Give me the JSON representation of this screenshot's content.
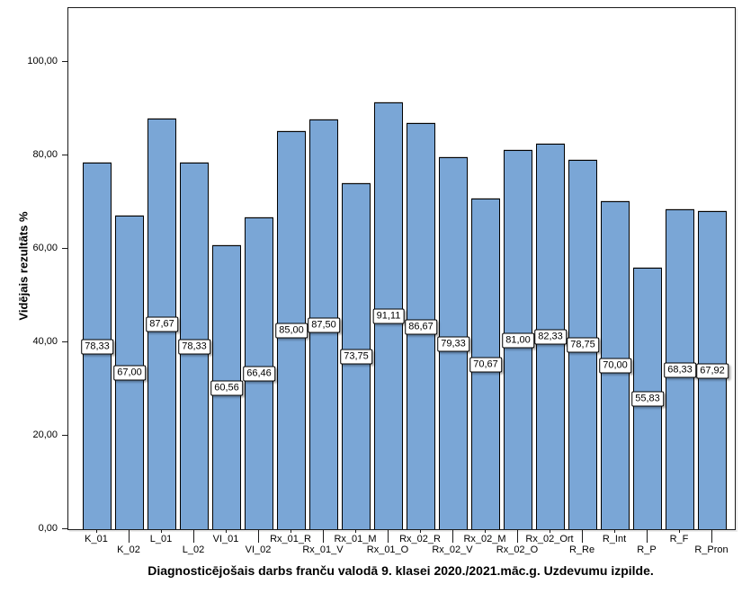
{
  "chart_data": {
    "type": "bar",
    "title": "Diagnosticējošais darbs franču valodā 9. klasei 2020./2021.māc.g. Uzdevumu izpilde.",
    "ylabel": "Vidējais rezultāts %",
    "xlabel": "",
    "categories": [
      "K_01",
      "K_02",
      "L_01",
      "L_02",
      "VI_01",
      "VI_02",
      "Rx_01_R",
      "Rx_01_V",
      "Rx_01_M",
      "Rx_01_O",
      "Rx_02_R",
      "Rx_02_V",
      "Rx_02_M",
      "Rx_02_O",
      "Rx_02_Ort",
      "R_Re",
      "R_Int",
      "R_P",
      "R_F",
      "R_Pron"
    ],
    "values": [
      78.33,
      67.0,
      87.67,
      78.33,
      60.56,
      66.46,
      85.0,
      87.5,
      73.75,
      91.11,
      86.67,
      79.33,
      70.67,
      81.0,
      82.33,
      78.75,
      70.0,
      55.83,
      68.33,
      67.92
    ],
    "value_labels": [
      "78,33",
      "67,00",
      "87,67",
      "78,33",
      "60,56",
      "66,46",
      "85,00",
      "87,50",
      "73,75",
      "91,11",
      "86,67",
      "79,33",
      "70,67",
      "81,00",
      "82,33",
      "78,75",
      "70,00",
      "55,83",
      "68,33",
      "67,92"
    ],
    "yticks": [
      0,
      20,
      40,
      60,
      80,
      100
    ],
    "ytick_labels": [
      "0,00",
      "20,00",
      "40,00",
      "60,00",
      "80,00",
      "100,00"
    ],
    "ylim": [
      0,
      111.5
    ],
    "grid": false,
    "legend": null,
    "bar_color": "#7AA6D6",
    "bar_border_color": "#000000",
    "label_stagger": "x-axis labels alternate between upper and lower rows"
  }
}
